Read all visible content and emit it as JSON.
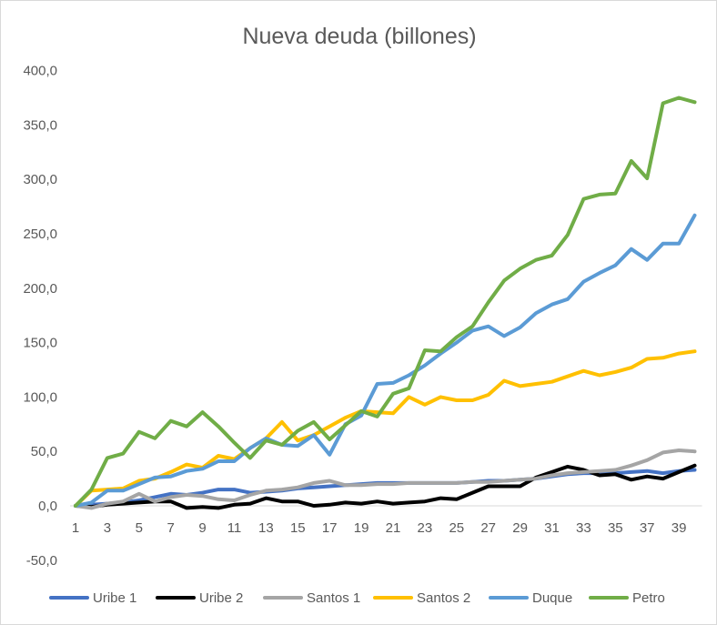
{
  "chart_data": {
    "type": "line",
    "title": "Nueva deuda (billones)",
    "xlabel": "",
    "ylabel": "",
    "ylim": [
      -50,
      400
    ],
    "y_ticks": [
      "400,0",
      "350,0",
      "300,0",
      "250,0",
      "200,0",
      "150,0",
      "100,0",
      "50,0",
      "0,0",
      "-50,0"
    ],
    "y_tick_values": [
      400,
      350,
      300,
      250,
      200,
      150,
      100,
      50,
      0,
      -50
    ],
    "x": [
      1,
      2,
      3,
      4,
      5,
      6,
      7,
      8,
      9,
      10,
      11,
      12,
      13,
      14,
      15,
      16,
      17,
      18,
      19,
      20,
      21,
      22,
      23,
      24,
      25,
      26,
      27,
      28,
      29,
      30,
      31,
      32,
      33,
      34,
      35,
      36,
      37,
      38,
      39,
      40
    ],
    "x_tick_labels": [
      "1",
      "3",
      "5",
      "7",
      "9",
      "11",
      "13",
      "15",
      "17",
      "19",
      "21",
      "23",
      "25",
      "27",
      "29",
      "31",
      "33",
      "35",
      "37",
      "39"
    ],
    "grid": false,
    "legend_position": "bottom",
    "series": [
      {
        "name": "Uribe 1",
        "color": "#4472c4",
        "values": [
          0,
          1,
          2,
          3,
          5,
          8,
          11,
          10,
          12,
          15,
          15,
          12,
          13,
          14,
          16,
          17,
          18,
          19,
          20,
          21,
          21,
          21,
          21,
          21,
          21,
          22,
          23,
          23,
          24,
          25,
          27,
          29,
          30,
          30,
          30,
          31,
          32,
          30,
          32,
          33
        ]
      },
      {
        "name": "Uribe 2",
        "color": "#000000",
        "values": [
          0,
          -1,
          1,
          2,
          3,
          4,
          4,
          -2,
          -1,
          -2,
          1,
          2,
          7,
          4,
          4,
          0,
          1,
          3,
          2,
          4,
          2,
          3,
          4,
          7,
          6,
          12,
          18,
          18,
          18,
          26,
          31,
          36,
          33,
          28,
          29,
          24,
          27,
          25,
          31,
          37
        ]
      },
      {
        "name": "Santos 1",
        "color": "#a5a5a5",
        "values": [
          0,
          -2,
          2,
          4,
          11,
          4,
          8,
          10,
          9,
          6,
          5,
          10,
          14,
          15,
          17,
          21,
          23,
          19,
          19,
          20,
          20,
          21,
          21,
          21,
          21,
          22,
          22,
          23,
          24,
          25,
          28,
          30,
          31,
          32,
          33,
          37,
          42,
          49,
          51,
          50
        ]
      },
      {
        "name": "Santos 2",
        "color": "#ffc000",
        "values": [
          0,
          14,
          15,
          16,
          23,
          25,
          31,
          38,
          35,
          46,
          43,
          53,
          62,
          77,
          60,
          65,
          73,
          81,
          87,
          86,
          85,
          100,
          93,
          100,
          97,
          97,
          102,
          115,
          110,
          112,
          114,
          119,
          124,
          120,
          123,
          127,
          135,
          136,
          140,
          142
        ]
      },
      {
        "name": "Duque",
        "color": "#5b9bd5",
        "values": [
          0,
          3,
          14,
          14,
          20,
          26,
          27,
          32,
          34,
          41,
          41,
          53,
          62,
          56,
          55,
          65,
          47,
          75,
          83,
          112,
          113,
          120,
          129,
          140,
          150,
          161,
          165,
          156,
          164,
          177,
          185,
          190,
          206,
          214,
          221,
          236,
          226,
          241,
          241,
          267
        ]
      },
      {
        "name": "Petro",
        "color": "#70ad47",
        "values": [
          0,
          15,
          44,
          48,
          68,
          62,
          78,
          73,
          86,
          73,
          58,
          44,
          60,
          56,
          69,
          77,
          61,
          74,
          87,
          82,
          103,
          108,
          143,
          142,
          155,
          165,
          187,
          207,
          218,
          226,
          230,
          249,
          282,
          286,
          287,
          317,
          301,
          370,
          375,
          371
        ]
      }
    ]
  }
}
